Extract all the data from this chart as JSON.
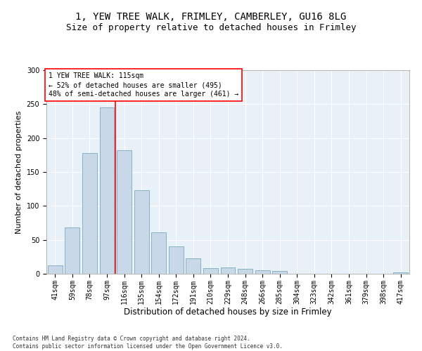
{
  "title1": "1, YEW TREE WALK, FRIMLEY, CAMBERLEY, GU16 8LG",
  "title2": "Size of property relative to detached houses in Frimley",
  "xlabel": "Distribution of detached houses by size in Frimley",
  "ylabel": "Number of detached properties",
  "categories": [
    "41sqm",
    "59sqm",
    "78sqm",
    "97sqm",
    "116sqm",
    "135sqm",
    "154sqm",
    "172sqm",
    "191sqm",
    "210sqm",
    "229sqm",
    "248sqm",
    "266sqm",
    "285sqm",
    "304sqm",
    "323sqm",
    "342sqm",
    "361sqm",
    "379sqm",
    "398sqm",
    "417sqm"
  ],
  "values": [
    12,
    68,
    178,
    245,
    182,
    123,
    61,
    40,
    23,
    8,
    9,
    7,
    5,
    4,
    0,
    0,
    0,
    0,
    0,
    0,
    2
  ],
  "bar_color": "#c8d8e8",
  "bar_edge_color": "#7aaabb",
  "annotation_text": "1 YEW TREE WALK: 115sqm\n← 52% of detached houses are smaller (495)\n48% of semi-detached houses are larger (461) →",
  "annotation_box_color": "white",
  "annotation_box_edge_color": "red",
  "red_line_color": "red",
  "ylim": [
    0,
    300
  ],
  "yticks": [
    0,
    50,
    100,
    150,
    200,
    250,
    300
  ],
  "background_color": "#e8f0f8",
  "footer_text": "Contains HM Land Registry data © Crown copyright and database right 2024.\nContains public sector information licensed under the Open Government Licence v3.0.",
  "title1_fontsize": 10,
  "title2_fontsize": 9,
  "xlabel_fontsize": 8.5,
  "ylabel_fontsize": 8,
  "tick_fontsize": 7,
  "annotation_fontsize": 7,
  "footer_fontsize": 5.5
}
